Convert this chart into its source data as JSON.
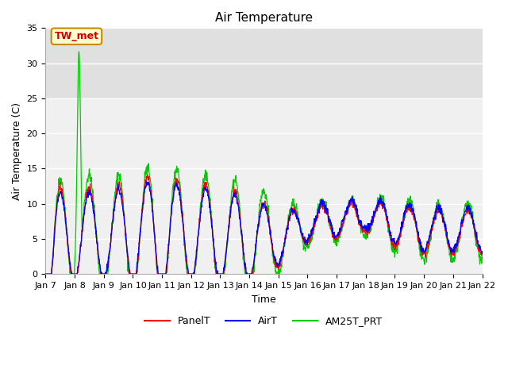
{
  "title": "Air Temperature",
  "xlabel": "Time",
  "ylabel": "Air Temperature (C)",
  "ylim": [
    0,
    35
  ],
  "xlim": [
    0,
    15
  ],
  "background_color": "#ffffff",
  "plot_bg_color": "#f0f0f0",
  "grid_color": "#ffffff",
  "shaded_region": [
    25,
    35
  ],
  "shaded_color": "#e0e0e0",
  "annotation_text": "TW_met",
  "annotation_bg": "#ffffcc",
  "annotation_border": "#cc8800",
  "annotation_color": "#cc0000",
  "line_colors": {
    "PanelT": "#ff0000",
    "AirT": "#0000ff",
    "AM25T_PRT": "#00cc00"
  },
  "x_tick_labels": [
    "Jan 7",
    "Jan 8",
    "Jan 9",
    "Jan 10",
    "Jan 11",
    "Jan 12",
    "Jan 13",
    "Jan 14",
    "Jan 15",
    "Jan 16",
    "Jan 17",
    "Jan 18",
    "Jan 19",
    "Jan 20",
    "Jan 21",
    "Jan 22"
  ],
  "x_tick_positions": [
    0,
    1,
    2,
    3,
    4,
    5,
    6,
    7,
    8,
    9,
    10,
    11,
    12,
    13,
    14,
    15
  ],
  "yticks": [
    0,
    5,
    10,
    15,
    20,
    25,
    30,
    35
  ]
}
